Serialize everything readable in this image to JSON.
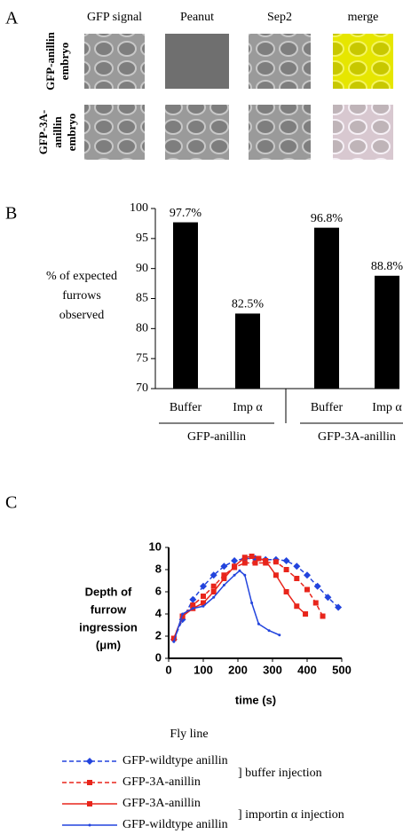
{
  "panel_a": {
    "label": "A",
    "columns": [
      "GFP signal",
      "Peanut",
      "Sep2",
      "merge"
    ],
    "rows": [
      [
        "GFP-anillin",
        "embryo"
      ],
      [
        "GFP-3A-",
        "anillin",
        "embryo"
      ]
    ]
  },
  "chart_data": [
    {
      "type": "bar",
      "label": "B",
      "ylabel": [
        "% of expected",
        "furrows",
        "observed"
      ],
      "categories": [
        "Buffer",
        "Imp α",
        "Buffer",
        "Imp α"
      ],
      "groups": [
        "GFP-anillin",
        "GFP-3A-anillin"
      ],
      "values": [
        97.7,
        82.5,
        96.8,
        88.8
      ],
      "value_labels": [
        "97.7%",
        "82.5%",
        "96.8%",
        "88.8%"
      ],
      "color": "#000000",
      "ylim": [
        70,
        100
      ],
      "yticks": [
        70,
        75,
        80,
        85,
        90,
        95,
        100
      ]
    },
    {
      "type": "line",
      "label": "C",
      "xlabel": "time (s)",
      "ylabel": [
        "Depth of",
        "furrow",
        "ingression",
        "(μm)"
      ],
      "xlim": [
        0,
        500
      ],
      "xticks": [
        0,
        100,
        200,
        300,
        400,
        500
      ],
      "ylim": [
        0,
        10
      ],
      "yticks": [
        0,
        2,
        4,
        6,
        8,
        10
      ],
      "legend_title": "Fly line",
      "annotations": [
        "] buffer injection",
        "] importin α injection"
      ],
      "series": [
        {
          "name": "GFP-wildtype anillin",
          "color": "#2244dd",
          "dashed": true,
          "marker": "diamond",
          "x": [
            15,
            40,
            70,
            100,
            130,
            160,
            190,
            220,
            250,
            280,
            310,
            340,
            370,
            400,
            430,
            460,
            490
          ],
          "values": [
            1.7,
            3.5,
            5.3,
            6.5,
            7.5,
            8.3,
            8.8,
            9.0,
            9.0,
            8.9,
            8.9,
            8.8,
            8.3,
            7.5,
            6.5,
            5.5,
            4.6
          ]
        },
        {
          "name": "GFP-3A-anillin",
          "color": "#e8251b",
          "dashed": true,
          "marker": "square",
          "x": [
            15,
            40,
            70,
            100,
            130,
            160,
            190,
            220,
            250,
            280,
            310,
            340,
            370,
            400,
            425,
            445
          ],
          "values": [
            1.8,
            3.8,
            4.8,
            5.6,
            6.5,
            7.5,
            8.2,
            8.6,
            8.6,
            8.6,
            8.7,
            8.0,
            7.2,
            6.2,
            5.0,
            3.8
          ]
        },
        {
          "name": "GFP-3A-anillin",
          "color": "#e8251b",
          "dashed": false,
          "marker": "square",
          "x": [
            15,
            40,
            70,
            100,
            130,
            160,
            190,
            220,
            240,
            260,
            280,
            310,
            340,
            370,
            395
          ],
          "values": [
            1.8,
            3.8,
            4.5,
            5.0,
            6.0,
            7.2,
            8.3,
            9.1,
            9.2,
            9.0,
            8.8,
            7.5,
            6.0,
            4.7,
            4.0
          ]
        },
        {
          "name": "GFP-wildtype anillin",
          "color": "#2244dd",
          "dashed": false,
          "marker": "tick",
          "x": [
            15,
            40,
            70,
            100,
            130,
            160,
            190,
            205,
            220,
            240,
            260,
            290,
            320
          ],
          "values": [
            1.5,
            4.0,
            4.5,
            4.7,
            5.5,
            6.6,
            7.5,
            7.9,
            7.5,
            5.0,
            3.1,
            2.5,
            2.1
          ]
        }
      ]
    }
  ]
}
